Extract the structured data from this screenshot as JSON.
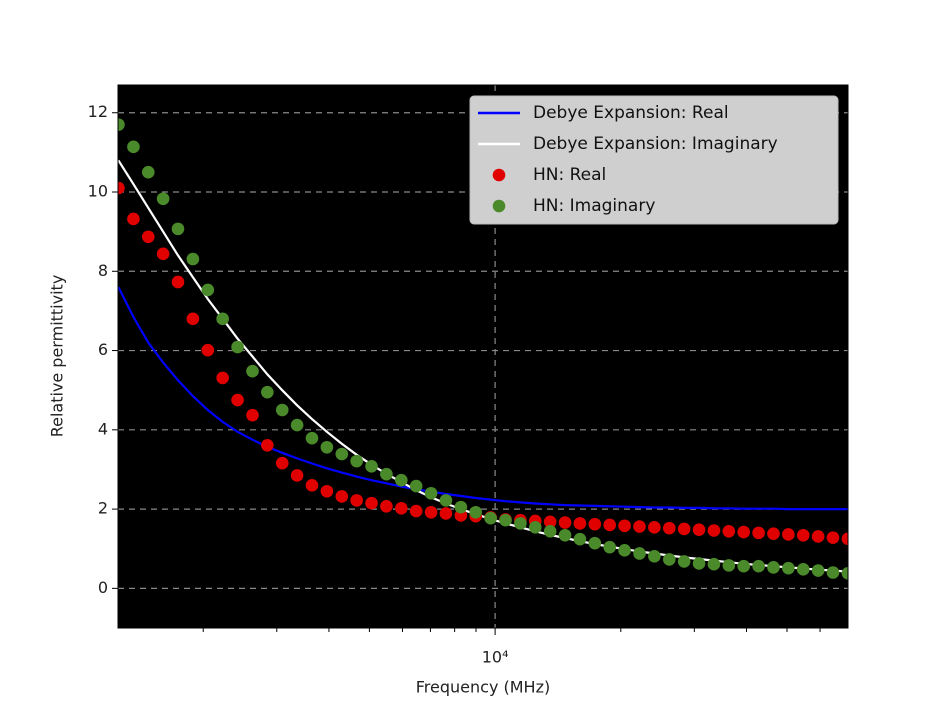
{
  "chart_data": {
    "type": "line",
    "x_label": "Frequency (MHz)",
    "y_label": "Relative permittivity",
    "x_scale": "log",
    "xlim": [
      1250,
      70000
    ],
    "xticks": [
      {
        "value": 10000,
        "label": "10⁴"
      }
    ],
    "xminorticks": [
      2000,
      3000,
      4000,
      5000,
      6000,
      7000,
      8000,
      9000,
      20000,
      30000,
      40000,
      50000,
      60000
    ],
    "ylim": [
      -1,
      12.7
    ],
    "yticks": [
      0,
      2,
      4,
      6,
      8,
      10,
      12
    ],
    "grid": true,
    "legend": "upper right",
    "x": [
      1253,
      1361,
      1477,
      1603,
      1740,
      1889,
      2051,
      2226,
      2417,
      2624,
      2848,
      3092,
      3356,
      3643,
      3955,
      4294,
      4661,
      5059,
      5492,
      5962,
      6471,
      7025,
      7625,
      8279,
      8986,
      9756,
      10590,
      11496,
      12478,
      13547,
      14706,
      15963,
      17329,
      18813,
      20421,
      22172,
      24065,
      26127,
      28358,
      30786,
      33420,
      36283,
      39382,
      42756,
      46408,
      50384,
      54687,
      59373,
      64444,
      69968
    ],
    "series": [
      {
        "name": "Debye Expansion: Real",
        "color": "#0000ff",
        "style": "line",
        "values": [
          7.6,
          6.85,
          6.2,
          5.7,
          5.25,
          4.85,
          4.5,
          4.2,
          3.95,
          3.75,
          3.57,
          3.42,
          3.28,
          3.15,
          3.03,
          2.92,
          2.82,
          2.73,
          2.65,
          2.57,
          2.5,
          2.44,
          2.38,
          2.33,
          2.28,
          2.24,
          2.2,
          2.17,
          2.14,
          2.12,
          2.1,
          2.09,
          2.08,
          2.07,
          2.06,
          2.05,
          2.04,
          2.04,
          2.03,
          2.03,
          2.02,
          2.02,
          2.01,
          2.01,
          2.01,
          2.0,
          2.0,
          2.0,
          2.0,
          2.0
        ]
      },
      {
        "name": "Debye Expansion: Imaginary",
        "color": "#ffffff",
        "style": "line",
        "values": [
          10.8,
          10.2,
          9.6,
          9.0,
          8.4,
          7.85,
          7.3,
          6.8,
          6.3,
          5.85,
          5.4,
          5.0,
          4.62,
          4.27,
          3.95,
          3.65,
          3.37,
          3.12,
          2.89,
          2.68,
          2.48,
          2.3,
          2.14,
          2.0,
          1.87,
          1.75,
          1.64,
          1.54,
          1.44,
          1.35,
          1.27,
          1.19,
          1.12,
          1.05,
          0.99,
          0.93,
          0.88,
          0.83,
          0.78,
          0.74,
          0.7,
          0.66,
          0.62,
          0.59,
          0.56,
          0.53,
          0.5,
          0.47,
          0.45,
          0.42
        ]
      },
      {
        "name": "HN: Real",
        "color": "#e00000",
        "style": "scatter",
        "values": [
          10.1,
          9.32,
          8.87,
          8.44,
          7.73,
          6.8,
          6.01,
          5.31,
          4.75,
          4.37,
          3.61,
          3.16,
          2.85,
          2.6,
          2.45,
          2.32,
          2.22,
          2.15,
          2.07,
          2.02,
          1.95,
          1.92,
          1.89,
          1.84,
          1.82,
          1.79,
          1.74,
          1.72,
          1.7,
          1.68,
          1.66,
          1.64,
          1.62,
          1.6,
          1.58,
          1.56,
          1.54,
          1.52,
          1.5,
          1.48,
          1.46,
          1.44,
          1.42,
          1.4,
          1.38,
          1.36,
          1.34,
          1.31,
          1.28,
          1.25
        ]
      },
      {
        "name": "HN: Imaginary",
        "color": "#4a8a2a",
        "style": "scatter",
        "values": [
          11.7,
          11.14,
          10.5,
          9.83,
          9.07,
          8.31,
          7.53,
          6.8,
          6.09,
          5.48,
          4.95,
          4.5,
          4.12,
          3.79,
          3.56,
          3.39,
          3.21,
          3.08,
          2.88,
          2.73,
          2.58,
          2.4,
          2.22,
          2.05,
          1.92,
          1.77,
          1.72,
          1.64,
          1.54,
          1.44,
          1.34,
          1.24,
          1.14,
          1.04,
          0.96,
          0.88,
          0.81,
          0.73,
          0.68,
          0.63,
          0.61,
          0.58,
          0.56,
          0.56,
          0.53,
          0.51,
          0.48,
          0.45,
          0.4,
          0.38
        ]
      }
    ]
  }
}
